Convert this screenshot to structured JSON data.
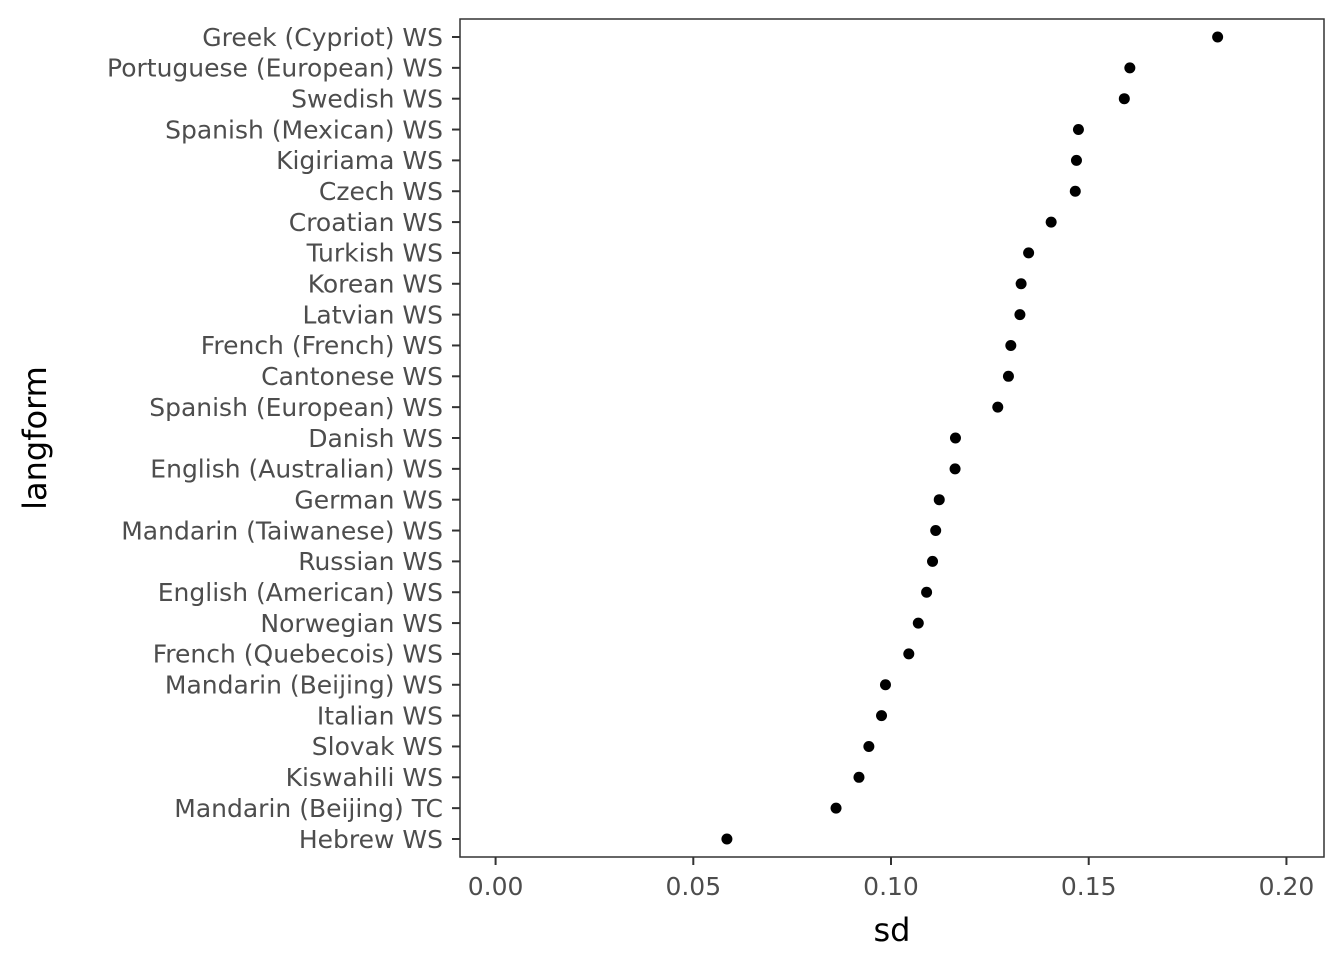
{
  "chart_data": {
    "type": "scatter",
    "xlabel": "sd",
    "ylabel": "langform",
    "xlim": [
      -0.009,
      0.2095
    ],
    "x_ticks": [
      0.0,
      0.05,
      0.1,
      0.15,
      0.2
    ],
    "x_tick_labels": [
      "0.00",
      "0.05",
      "0.10",
      "0.15",
      "0.20"
    ],
    "grid": false,
    "point_color": "#000000",
    "categories": [
      "Greek (Cypriot) WS",
      "Portuguese (European) WS",
      "Swedish WS",
      "Spanish (Mexican) WS",
      "Kigiriama WS",
      "Czech WS",
      "Croatian WS",
      "Turkish WS",
      "Korean WS",
      "Latvian WS",
      "French (French) WS",
      "Cantonese WS",
      "Spanish (European) WS",
      "Danish WS",
      "English (Australian) WS",
      "German WS",
      "Mandarin (Taiwanese) WS",
      "Russian WS",
      "English (American) WS",
      "Norwegian WS",
      "French (Quebecois) WS",
      "Mandarin (Beijing) WS",
      "Italian WS",
      "Slovak WS",
      "Kiswahili WS",
      "Mandarin (Beijing) TC",
      "Hebrew WS"
    ],
    "values": [
      0.1826,
      0.1604,
      0.159,
      0.1474,
      0.1469,
      0.1466,
      0.1405,
      0.1348,
      0.1329,
      0.1326,
      0.1303,
      0.1297,
      0.127,
      0.1163,
      0.1162,
      0.1122,
      0.1113,
      0.1105,
      0.109,
      0.1069,
      0.1045,
      0.0986,
      0.0976,
      0.0944,
      0.0919,
      0.0861,
      0.0585
    ]
  }
}
